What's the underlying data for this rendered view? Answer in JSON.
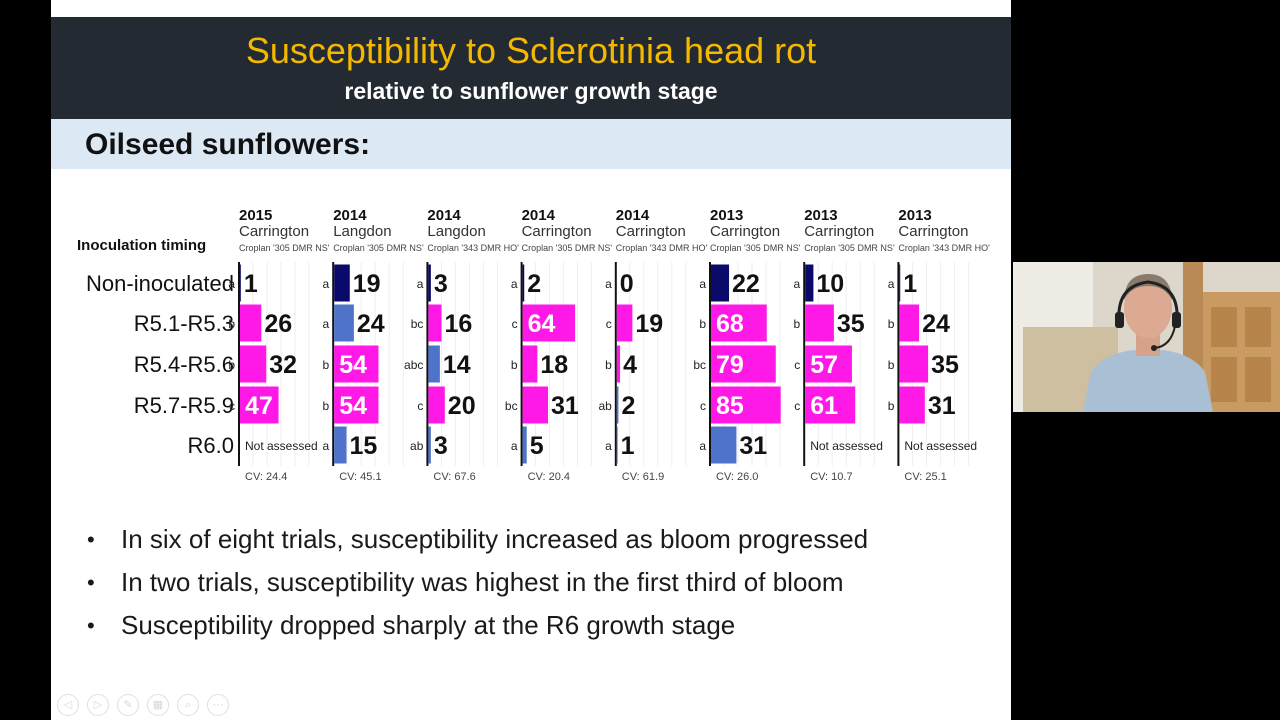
{
  "slide": {
    "title": "Susceptibility to Sclerotinia head rot",
    "subtitle": "relative to sunflower growth stage",
    "section_heading": "Oilseed sunflowers:"
  },
  "chart_data": {
    "type": "bar",
    "orientation": "horizontal",
    "row_header": "Inoculation timing",
    "categories": [
      "Non-inoculated",
      "R5.1-R5.3",
      "R5.4-R5.6",
      "R5.7-R5.9",
      "R6.0"
    ],
    "xlim": [
      0,
      100
    ],
    "colors": {
      "pink": "#ff19e6",
      "mid_blue": "#4f73c9",
      "dark_navy": "#0a0a6b",
      "pink_label": "#ffffff",
      "dark_label": "#111111"
    },
    "not_assessed_label": "Not assessed",
    "series": [
      {
        "year": "2015",
        "location": "Carrington",
        "hybrid": "Croplan '305 DMR NS'",
        "cv": "CV: 24.4",
        "values": [
          1,
          26,
          32,
          47,
          null
        ],
        "letters": [
          "a",
          "b",
          "b",
          "c",
          ""
        ],
        "bar_colors": [
          "dark",
          "pink",
          "pink",
          "pink",
          "none"
        ]
      },
      {
        "year": "2014",
        "location": "Langdon",
        "hybrid": "Croplan '305 DMR NS'",
        "cv": "CV: 45.1",
        "values": [
          19,
          24,
          54,
          54,
          15
        ],
        "letters": [
          "a",
          "a",
          "b",
          "b",
          "a"
        ],
        "bar_colors": [
          "dark",
          "blue",
          "pink",
          "pink",
          "blue"
        ]
      },
      {
        "year": "2014",
        "location": "Langdon",
        "hybrid": "Croplan '343 DMR HO'",
        "cv": "CV: 67.6",
        "values": [
          3,
          16,
          14,
          20,
          3
        ],
        "letters": [
          "a",
          "bc",
          "abc",
          "c",
          "ab"
        ],
        "bar_colors": [
          "dark",
          "pink",
          "blue",
          "pink",
          "blue"
        ]
      },
      {
        "year": "2014",
        "location": "Carrington",
        "hybrid": "Croplan '305 DMR NS'",
        "cv": "CV: 20.4",
        "values": [
          2,
          64,
          18,
          31,
          5
        ],
        "letters": [
          "a",
          "c",
          "b",
          "bc",
          "a"
        ],
        "bar_colors": [
          "dark",
          "pink",
          "pink",
          "pink",
          "blue"
        ]
      },
      {
        "year": "2014",
        "location": "Carrington",
        "hybrid": "Croplan '343 DMR HO'",
        "cv": "CV: 61.9",
        "values": [
          0,
          19,
          4,
          2,
          1
        ],
        "letters": [
          "a",
          "c",
          "b",
          "ab",
          "a"
        ],
        "bar_colors": [
          "dark",
          "pink",
          "pink",
          "blue",
          "blue"
        ]
      },
      {
        "year": "2013",
        "location": "Carrington",
        "hybrid": "Croplan '305 DMR NS'",
        "cv": "CV: 26.0",
        "values": [
          22,
          68,
          79,
          85,
          31
        ],
        "letters": [
          "a",
          "b",
          "bc",
          "c",
          "a"
        ],
        "bar_colors": [
          "dark",
          "pink",
          "pink",
          "pink",
          "blue"
        ]
      },
      {
        "year": "2013",
        "location": "Carrington",
        "hybrid": "Croplan '305 DMR NS'",
        "cv": "CV: 10.7",
        "values": [
          10,
          35,
          57,
          61,
          null
        ],
        "letters": [
          "a",
          "b",
          "c",
          "c",
          ""
        ],
        "bar_colors": [
          "dark",
          "pink",
          "pink",
          "pink",
          "none"
        ]
      },
      {
        "year": "2013",
        "location": "Carrington",
        "hybrid": "Croplan '343 DMR HO'",
        "cv": "CV: 25.1",
        "values": [
          1,
          24,
          35,
          31,
          null
        ],
        "letters": [
          "a",
          "b",
          "b",
          "b",
          ""
        ],
        "bar_colors": [
          "dark",
          "pink",
          "pink",
          "pink",
          "none"
        ]
      }
    ]
  },
  "bullets": [
    "In six of eight trials, susceptibility increased as bloom progressed",
    "In two trials, susceptibility was highest in the first third of bloom",
    "Susceptibility dropped sharply at the R6 growth stage"
  ],
  "bullet_symbol": "•",
  "presenter_controls": [
    {
      "name": "prev-slide-icon",
      "glyph": "◁"
    },
    {
      "name": "next-slide-icon",
      "glyph": "▷"
    },
    {
      "name": "pen-icon",
      "glyph": "✎"
    },
    {
      "name": "slides-grid-icon",
      "glyph": "▦"
    },
    {
      "name": "zoom-icon",
      "glyph": "⌕"
    },
    {
      "name": "more-options-icon",
      "glyph": "⋯"
    }
  ]
}
